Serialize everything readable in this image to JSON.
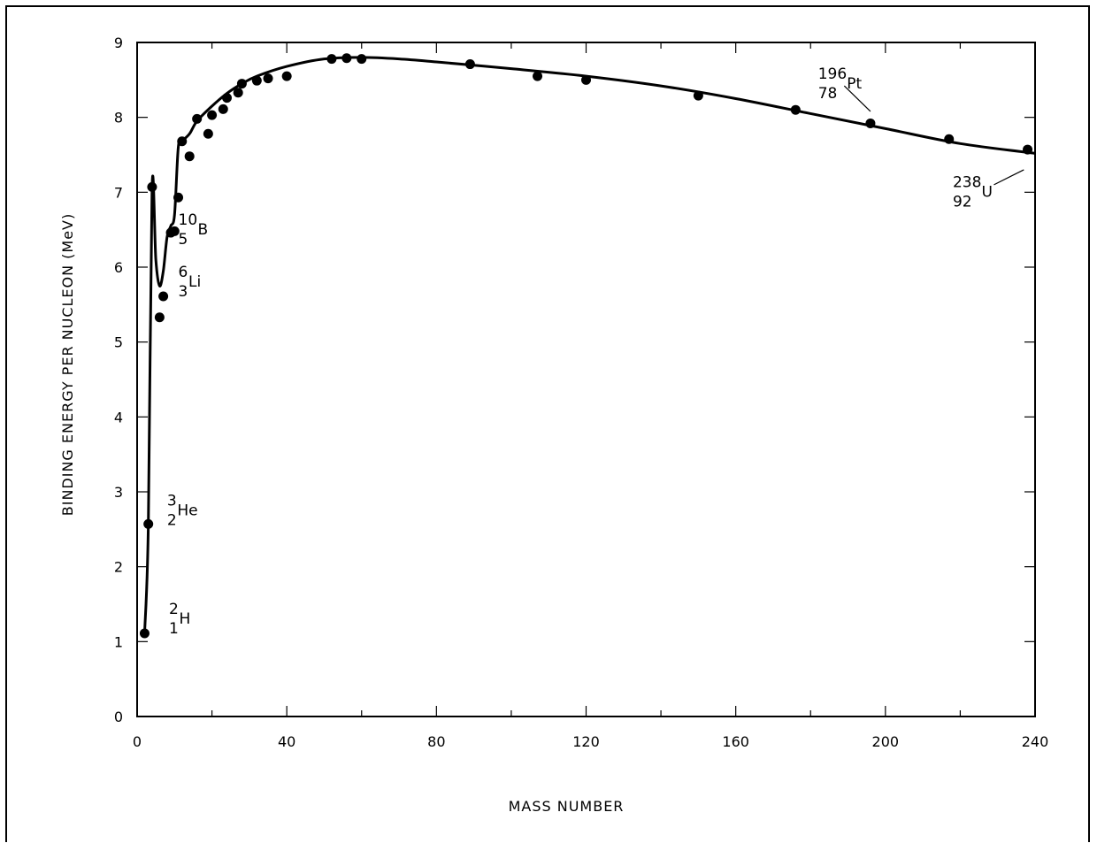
{
  "chart_data": {
    "type": "scatter",
    "title": "",
    "xlabel": "MASS NUMBER",
    "ylabel": "BINDING ENERGY PER NUCLEON (MeV)",
    "xlim": [
      0,
      240
    ],
    "ylim": [
      0,
      9
    ],
    "x_ticks": [
      "0",
      "40",
      "80",
      "120",
      "160",
      "200",
      "240"
    ],
    "y_ticks": [
      "0",
      "1",
      "2",
      "3",
      "4",
      "5",
      "6",
      "7",
      "8",
      "9"
    ],
    "grid": false,
    "points": [
      {
        "x": 2,
        "y": 1.11
      },
      {
        "x": 3,
        "y": 2.57
      },
      {
        "x": 4,
        "y": 7.07
      },
      {
        "x": 6,
        "y": 5.33
      },
      {
        "x": 7,
        "y": 5.61
      },
      {
        "x": 9,
        "y": 6.46
      },
      {
        "x": 10,
        "y": 6.48
      },
      {
        "x": 11,
        "y": 6.93
      },
      {
        "x": 12,
        "y": 7.68
      },
      {
        "x": 14,
        "y": 7.48
      },
      {
        "x": 16,
        "y": 7.98
      },
      {
        "x": 19,
        "y": 7.78
      },
      {
        "x": 20,
        "y": 8.03
      },
      {
        "x": 23,
        "y": 8.11
      },
      {
        "x": 24,
        "y": 8.26
      },
      {
        "x": 27,
        "y": 8.33
      },
      {
        "x": 28,
        "y": 8.45
      },
      {
        "x": 32,
        "y": 8.49
      },
      {
        "x": 35,
        "y": 8.52
      },
      {
        "x": 40,
        "y": 8.55
      },
      {
        "x": 52,
        "y": 8.78
      },
      {
        "x": 56,
        "y": 8.79
      },
      {
        "x": 60,
        "y": 8.78
      },
      {
        "x": 89,
        "y": 8.71
      },
      {
        "x": 107,
        "y": 8.55
      },
      {
        "x": 120,
        "y": 8.5
      },
      {
        "x": 150,
        "y": 8.29
      },
      {
        "x": 176,
        "y": 8.1
      },
      {
        "x": 196,
        "y": 7.92
      },
      {
        "x": 217,
        "y": 7.71
      },
      {
        "x": 238,
        "y": 7.57
      }
    ],
    "curve": {
      "x": [
        2,
        3,
        4,
        5,
        6,
        7,
        8,
        9,
        10,
        11,
        12,
        14,
        16,
        20,
        24,
        28,
        32,
        40,
        50,
        60,
        70,
        80,
        100,
        120,
        140,
        160,
        180,
        200,
        220,
        240
      ],
      "y": [
        1.11,
        2.57,
        7.07,
        6.1,
        5.75,
        5.95,
        6.4,
        6.55,
        6.7,
        7.6,
        7.68,
        7.78,
        7.95,
        8.15,
        8.32,
        8.45,
        8.55,
        8.68,
        8.78,
        8.8,
        8.78,
        8.74,
        8.65,
        8.55,
        8.42,
        8.25,
        8.05,
        7.85,
        7.65,
        7.52
      ]
    },
    "annotations": [
      {
        "mass": "2",
        "atomic": "1",
        "symbol": "H"
      },
      {
        "mass": "3",
        "atomic": "2",
        "symbol": "He"
      },
      {
        "mass": "6",
        "atomic": "3",
        "symbol": "Li"
      },
      {
        "mass": "10",
        "atomic": "5",
        "symbol": "B"
      },
      {
        "mass": "196",
        "atomic": "78",
        "symbol": "Pt"
      },
      {
        "mass": "238",
        "atomic": "92",
        "symbol": "U"
      }
    ]
  }
}
